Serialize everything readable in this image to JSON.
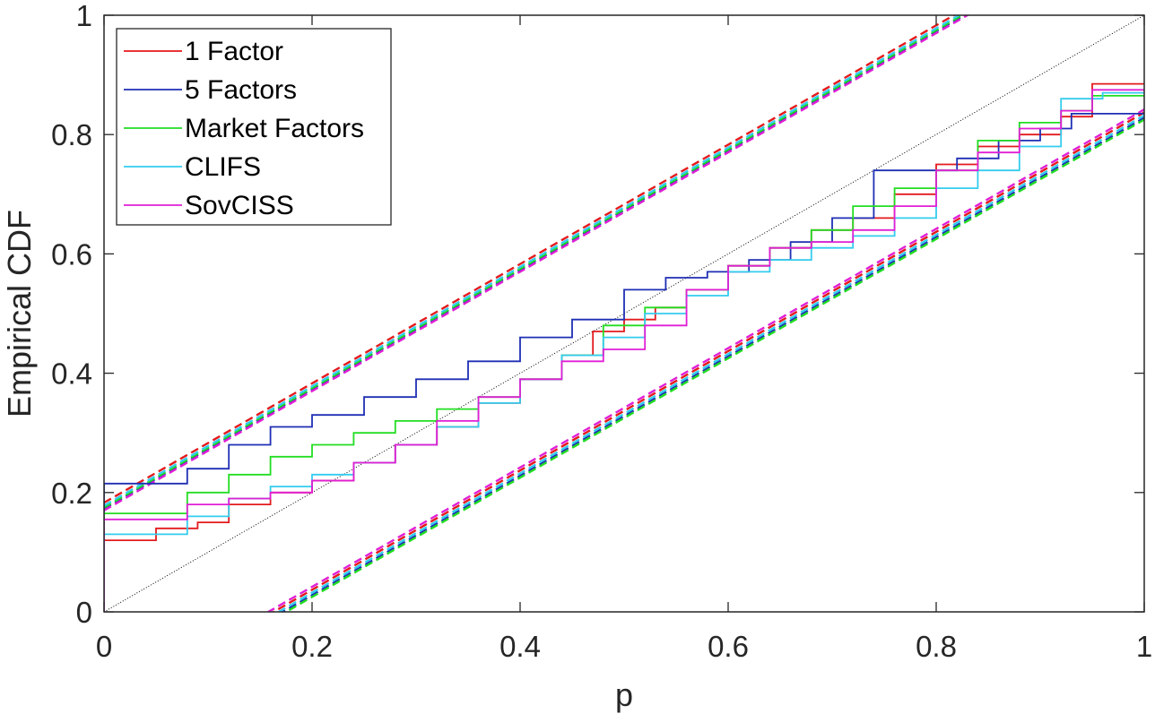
{
  "chart_data": {
    "type": "line",
    "title": "",
    "xlabel": "p",
    "ylabel": "Empirical CDF",
    "xlim": [
      0,
      1
    ],
    "ylim": [
      0,
      1
    ],
    "xticks": [
      "0",
      "0.2",
      "0.4",
      "0.6",
      "0.8",
      "1"
    ],
    "yticks": [
      "0",
      "0.2",
      "0.4",
      "0.6",
      "0.8",
      "1"
    ],
    "grid": false,
    "legend_position": "top-left",
    "reference_line": {
      "style": "dotted",
      "color": "#000000",
      "from": [
        0,
        0
      ],
      "to": [
        1,
        1
      ]
    },
    "series": [
      {
        "name": "1 Factor",
        "color": "#e41a1c",
        "band_offsets": [
          0.183,
          -0.163
        ],
        "values": [
          [
            0,
            0
          ],
          [
            0,
            0.12
          ],
          [
            0.03,
            0.12
          ],
          [
            0.05,
            0.14
          ],
          [
            0.09,
            0.15
          ],
          [
            0.12,
            0.18
          ],
          [
            0.16,
            0.2
          ],
          [
            0.2,
            0.22
          ],
          [
            0.24,
            0.25
          ],
          [
            0.28,
            0.28
          ],
          [
            0.32,
            0.31
          ],
          [
            0.36,
            0.35
          ],
          [
            0.4,
            0.39
          ],
          [
            0.44,
            0.43
          ],
          [
            0.47,
            0.47
          ],
          [
            0.5,
            0.49
          ],
          [
            0.53,
            0.51
          ],
          [
            0.56,
            0.54
          ],
          [
            0.6,
            0.58
          ],
          [
            0.64,
            0.61
          ],
          [
            0.68,
            0.64
          ],
          [
            0.72,
            0.66
          ],
          [
            0.76,
            0.7
          ],
          [
            0.8,
            0.75
          ],
          [
            0.84,
            0.78
          ],
          [
            0.88,
            0.8
          ],
          [
            0.92,
            0.83
          ],
          [
            0.95,
            0.885
          ],
          [
            1,
            0.885
          ]
        ]
      },
      {
        "name": "5 Factors",
        "color": "#1f2fb4",
        "band_offsets": [
          0.173,
          -0.172
        ],
        "values": [
          [
            0,
            0
          ],
          [
            0,
            0.215
          ],
          [
            0.05,
            0.215
          ],
          [
            0.08,
            0.24
          ],
          [
            0.12,
            0.28
          ],
          [
            0.16,
            0.31
          ],
          [
            0.2,
            0.33
          ],
          [
            0.25,
            0.36
          ],
          [
            0.3,
            0.39
          ],
          [
            0.35,
            0.42
          ],
          [
            0.4,
            0.46
          ],
          [
            0.45,
            0.49
          ],
          [
            0.5,
            0.54
          ],
          [
            0.54,
            0.56
          ],
          [
            0.58,
            0.57
          ],
          [
            0.62,
            0.59
          ],
          [
            0.66,
            0.62
          ],
          [
            0.7,
            0.66
          ],
          [
            0.74,
            0.74
          ],
          [
            0.78,
            0.74
          ],
          [
            0.82,
            0.76
          ],
          [
            0.86,
            0.79
          ],
          [
            0.9,
            0.81
          ],
          [
            0.93,
            0.835
          ],
          [
            1,
            0.835
          ]
        ]
      },
      {
        "name": "Market Factors",
        "color": "#22dd22",
        "band_offsets": [
          0.175,
          -0.175
        ],
        "values": [
          [
            0,
            0
          ],
          [
            0,
            0.165
          ],
          [
            0.04,
            0.165
          ],
          [
            0.08,
            0.2
          ],
          [
            0.12,
            0.23
          ],
          [
            0.16,
            0.26
          ],
          [
            0.2,
            0.28
          ],
          [
            0.24,
            0.3
          ],
          [
            0.28,
            0.32
          ],
          [
            0.32,
            0.34
          ],
          [
            0.36,
            0.36
          ],
          [
            0.4,
            0.39
          ],
          [
            0.44,
            0.43
          ],
          [
            0.48,
            0.48
          ],
          [
            0.52,
            0.51
          ],
          [
            0.56,
            0.54
          ],
          [
            0.6,
            0.58
          ],
          [
            0.64,
            0.61
          ],
          [
            0.68,
            0.64
          ],
          [
            0.72,
            0.68
          ],
          [
            0.76,
            0.71
          ],
          [
            0.8,
            0.74
          ],
          [
            0.84,
            0.79
          ],
          [
            0.88,
            0.82
          ],
          [
            0.92,
            0.84
          ],
          [
            0.95,
            0.865
          ],
          [
            1,
            0.865
          ]
        ]
      },
      {
        "name": "CLIFS",
        "color": "#33ccee",
        "band_offsets": [
          0.178,
          -0.168
        ],
        "values": [
          [
            0,
            0
          ],
          [
            0,
            0.13
          ],
          [
            0.04,
            0.13
          ],
          [
            0.08,
            0.16
          ],
          [
            0.12,
            0.19
          ],
          [
            0.16,
            0.21
          ],
          [
            0.2,
            0.23
          ],
          [
            0.24,
            0.25
          ],
          [
            0.28,
            0.28
          ],
          [
            0.32,
            0.31
          ],
          [
            0.36,
            0.35
          ],
          [
            0.4,
            0.39
          ],
          [
            0.44,
            0.43
          ],
          [
            0.48,
            0.46
          ],
          [
            0.52,
            0.5
          ],
          [
            0.56,
            0.53
          ],
          [
            0.6,
            0.57
          ],
          [
            0.64,
            0.59
          ],
          [
            0.68,
            0.61
          ],
          [
            0.72,
            0.63
          ],
          [
            0.76,
            0.66
          ],
          [
            0.8,
            0.71
          ],
          [
            0.84,
            0.74
          ],
          [
            0.88,
            0.78
          ],
          [
            0.92,
            0.86
          ],
          [
            0.96,
            0.87
          ],
          [
            1,
            0.87
          ]
        ]
      },
      {
        "name": "SovCISS",
        "color": "#e01fd6",
        "band_offsets": [
          0.17,
          -0.158
        ],
        "values": [
          [
            0,
            0
          ],
          [
            0,
            0.155
          ],
          [
            0.04,
            0.155
          ],
          [
            0.08,
            0.18
          ],
          [
            0.12,
            0.19
          ],
          [
            0.16,
            0.2
          ],
          [
            0.2,
            0.22
          ],
          [
            0.24,
            0.25
          ],
          [
            0.28,
            0.28
          ],
          [
            0.32,
            0.32
          ],
          [
            0.36,
            0.36
          ],
          [
            0.4,
            0.39
          ],
          [
            0.44,
            0.42
          ],
          [
            0.48,
            0.44
          ],
          [
            0.52,
            0.48
          ],
          [
            0.56,
            0.54
          ],
          [
            0.6,
            0.58
          ],
          [
            0.64,
            0.61
          ],
          [
            0.68,
            0.62
          ],
          [
            0.72,
            0.64
          ],
          [
            0.76,
            0.68
          ],
          [
            0.8,
            0.74
          ],
          [
            0.84,
            0.77
          ],
          [
            0.88,
            0.81
          ],
          [
            0.92,
            0.84
          ],
          [
            0.95,
            0.875
          ],
          [
            1,
            0.875
          ]
        ]
      }
    ]
  }
}
